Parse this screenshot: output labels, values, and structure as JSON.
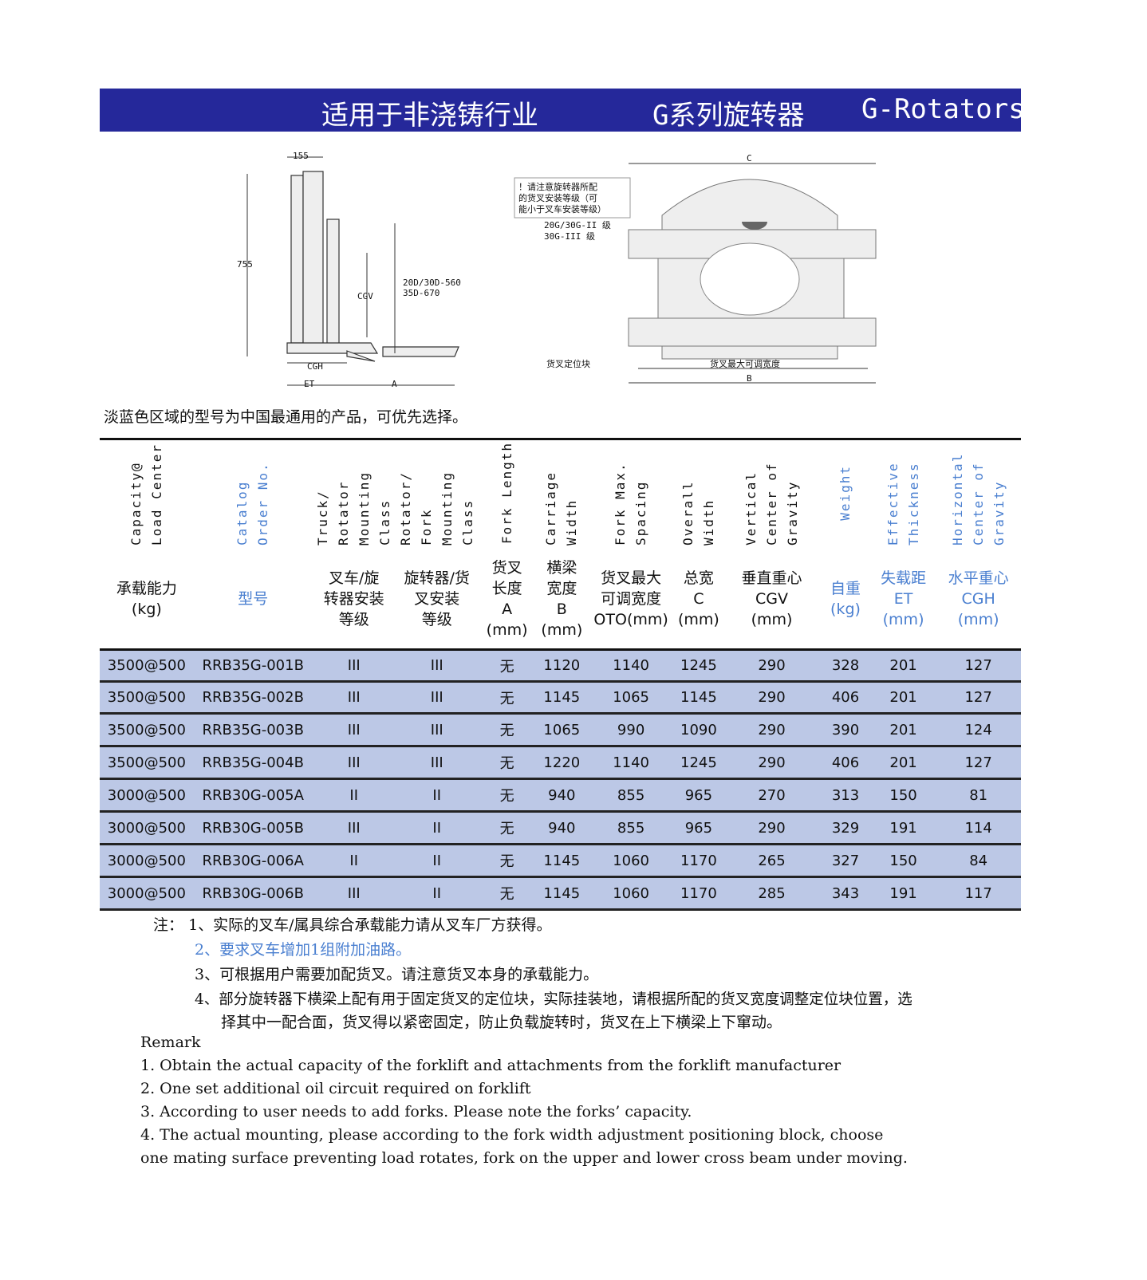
{
  "banner": {
    "industry": "适用于非浇铸行业",
    "series": "G系列旋转器",
    "english": "G-Rotators",
    "bg": "#25289a"
  },
  "diagram_side": {
    "dim_top": "155",
    "dim_height": "755",
    "cgv": "CGV",
    "fork_class": "20D/30D-560",
    "fork_class2": "35D-670",
    "cgh": "CGH",
    "et": "ET",
    "a": "A"
  },
  "diagram_front": {
    "c": "C",
    "b": "B",
    "warning": [
      "！请注意旋转器所配",
      "的货叉安装等级（可",
      "能小于叉车安装等级）"
    ],
    "class1": "20G/30G-II 级",
    "class2": "30G-III 级",
    "locator": "货叉定位块",
    "max_width": "货叉最大可调宽度"
  },
  "note": "淡蓝色区域的型号为中国最通用的产品，可优先选择。",
  "table": {
    "row_color": "#bcc8e6",
    "headers_en": [
      "Capacity@ Load Center",
      "Catalog Order No.",
      "Truck/ Rotator Mounting Class",
      "Rotator/ Fork Mounting Class",
      "Fork Length",
      "Carriage Width",
      "Fork Max. Spacing",
      "Overall Width",
      "Vertical Center of Gravity",
      "Weight",
      "Effective Thickness",
      "Horizontal Center of Gravity"
    ],
    "headers_cn": [
      "承载能力\n(kg)",
      "型号",
      "叉车/旋\n转器安装\n等级",
      "旋转器/货\n叉安装\n等级",
      "货叉\n长度\nA\n(mm)",
      "横梁\n宽度\nB\n(mm)",
      "货叉最大\n可调宽度\nOTO(mm)",
      "总宽\nC\n(mm)",
      "垂直重心\nCGV\n(mm)",
      "自重\n(kg)",
      "失载距\nET\n(mm)",
      "水平重心\nCGH\n(mm)"
    ],
    "blue_columns": [
      1,
      9,
      10,
      11
    ],
    "rows": [
      [
        "3500@500",
        "RRB35G-001B",
        "III",
        "III",
        "无",
        "1120",
        "1140",
        "1245",
        "290",
        "328",
        "201",
        "127"
      ],
      [
        "3500@500",
        "RRB35G-002B",
        "III",
        "III",
        "无",
        "1145",
        "1065",
        "1145",
        "290",
        "406",
        "201",
        "127"
      ],
      [
        "3500@500",
        "RRB35G-003B",
        "III",
        "III",
        "无",
        "1065",
        "990",
        "1090",
        "290",
        "390",
        "201",
        "124"
      ],
      [
        "3500@500",
        "RRB35G-004B",
        "III",
        "III",
        "无",
        "1220",
        "1140",
        "1245",
        "290",
        "406",
        "201",
        "127"
      ],
      [
        "3000@500",
        "RRB30G-005A",
        "II",
        "II",
        "无",
        "940",
        "855",
        "965",
        "270",
        "313",
        "150",
        "81"
      ],
      [
        "3000@500",
        "RRB30G-005B",
        "III",
        "II",
        "无",
        "940",
        "855",
        "965",
        "290",
        "329",
        "191",
        "114"
      ],
      [
        "3000@500",
        "RRB30G-006A",
        "II",
        "II",
        "无",
        "1145",
        "1060",
        "1170",
        "265",
        "327",
        "150",
        "84"
      ],
      [
        "3000@500",
        "RRB30G-006B",
        "III",
        "II",
        "无",
        "1145",
        "1060",
        "1170",
        "285",
        "343",
        "191",
        "117"
      ]
    ]
  },
  "notes": {
    "prefix": "注：",
    "items": [
      "1、实际的叉车/属具综合承载能力请从叉车厂方获得。",
      "2、要求叉车增加1组附加油路。",
      "3、可根据用户需要加配货叉。请注意货叉本身的承载能力。",
      "4、部分旋转器下横梁上配有用于固定货叉的定位块，实际挂装地，请根据所配的货叉宽度调整定位块位置，选",
      "择其中一配合面，货叉得以紧密固定，防止负载旋转时，货叉在上下横梁上下窜动。"
    ]
  },
  "remark": {
    "title": "Remark",
    "items": [
      "1. Obtain the actual capacity of the forklift and attachments from the forklift manufacturer",
      "2. One set additional oil circuit required on forklift",
      "3. According to user needs to add forks. Please note the forks’ capacity.",
      "4. The actual mounting, please according to the fork width adjustment positioning block, choose",
      "one mating surface preventing load rotates, fork on the upper and lower cross beam under moving."
    ]
  }
}
